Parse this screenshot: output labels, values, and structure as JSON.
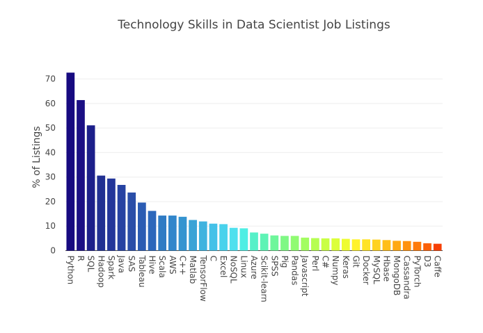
{
  "chart_data": {
    "type": "bar",
    "title": "Technology Skills in Data Scientist Job Listings",
    "xlabel": "",
    "ylabel": "% of Listings",
    "ylim": [
      0,
      75
    ],
    "yticks": [
      0,
      10,
      20,
      30,
      40,
      50,
      60,
      70
    ],
    "grid": true,
    "categories": [
      "Python",
      "R",
      "SQL",
      "Hadoop",
      "Spark",
      "Java",
      "SAS",
      "Tableau",
      "Hive",
      "Scala",
      "AWS",
      "C++",
      "Matlab",
      "TensorFlow",
      "C",
      "Excel",
      "NoSQL",
      "Linux",
      "Azure",
      "Scikit-learn",
      "SPSS",
      "Pig",
      "Pandas",
      "Javascript",
      "Perl",
      "C#",
      "Numpy",
      "Keras",
      "Git",
      "Docker",
      "MySQL",
      "Hbase",
      "MongoDB",
      "Cassandra",
      "PyTorch",
      "D3",
      "Caffe"
    ],
    "values": [
      72.6,
      61.4,
      51.1,
      30.6,
      29.4,
      26.8,
      23.7,
      19.6,
      16.2,
      14.3,
      14.3,
      13.8,
      12.5,
      11.9,
      11.0,
      10.8,
      9.3,
      9.1,
      7.4,
      6.9,
      6.2,
      6.0,
      6.0,
      5.3,
      5.1,
      5.0,
      5.0,
      4.8,
      4.6,
      4.6,
      4.5,
      4.3,
      4.0,
      3.9,
      3.6,
      3.0,
      2.8
    ],
    "colors": [
      "#170a80",
      "#1b0f84",
      "#1c1f8a",
      "#213092",
      "#23369a",
      "#2642a2",
      "#2a4ea8",
      "#2b5cb3",
      "#2c67bb",
      "#2f7bc4",
      "#3186cb",
      "#3594d0",
      "#3aa3d6",
      "#3fb3df",
      "#44c1e8",
      "#49d2ec",
      "#4fe0ee",
      "#4feee4",
      "#55f0c8",
      "#5ef3b5",
      "#6ef69b",
      "#7ff885",
      "#90fb72",
      "#a3fd60",
      "#b6fe51",
      "#c9ff44",
      "#dcff3a",
      "#eefc32",
      "#fff22b",
      "#ffe326",
      "#ffd220",
      "#ffbe1a",
      "#ffa914",
      "#ff920f",
      "#fe7b0b",
      "#fb6007",
      "#f63f04"
    ]
  }
}
